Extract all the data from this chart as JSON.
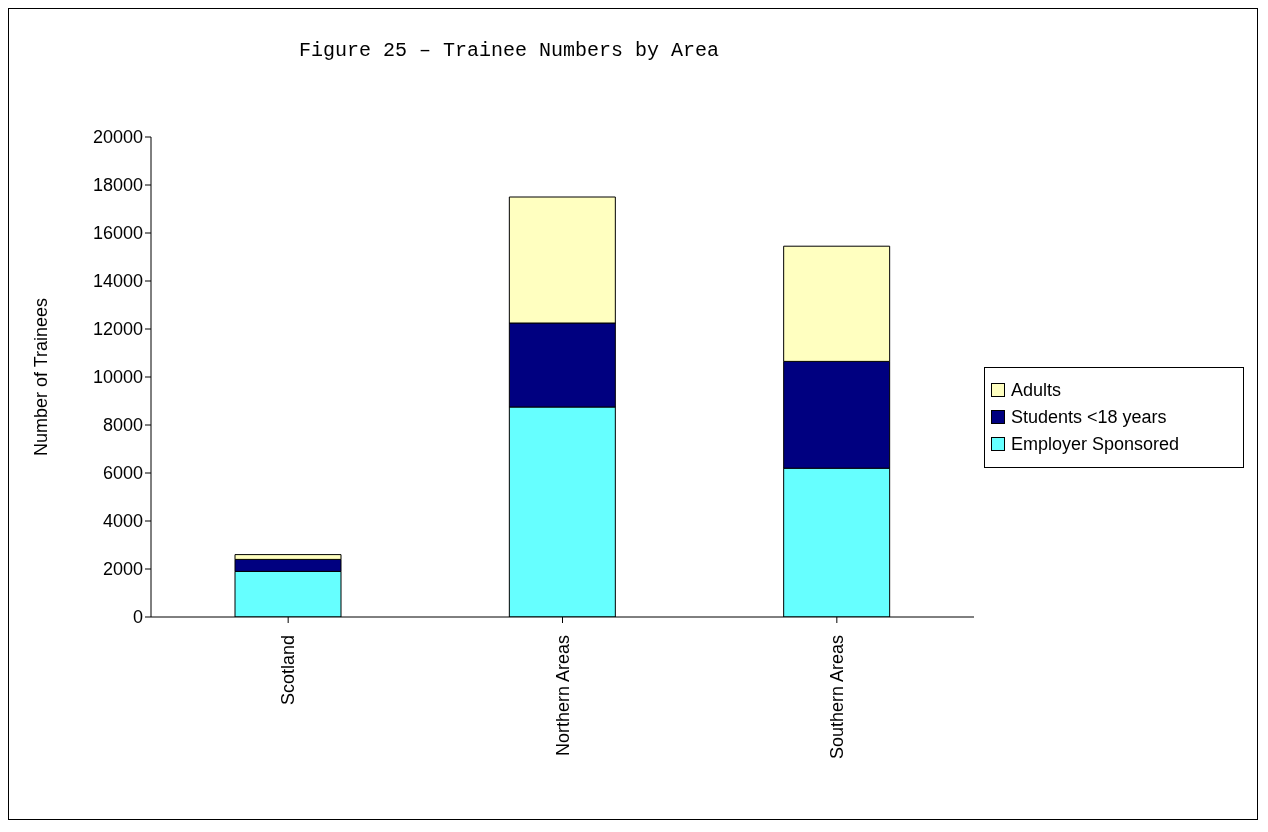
{
  "chart_data": {
    "type": "bar",
    "title": "Figure 25 – Trainee Numbers by Area",
    "ylabel": "Number of Trainees",
    "categories": [
      "Scotland",
      "Northern Areas",
      "Southern Areas"
    ],
    "series": [
      {
        "name": "Employer Sponsored",
        "color": "#66ffff",
        "values": [
          1900,
          8750,
          6200
        ]
      },
      {
        "name": "Students <18 years",
        "color": "#000080",
        "values": [
          500,
          3500,
          4450
        ]
      },
      {
        "name": "Adults",
        "color": "#ffffc0",
        "values": [
          200,
          5250,
          4800
        ]
      }
    ],
    "stacked": true,
    "ylim": [
      0,
      20000
    ],
    "yticks": [
      0,
      2000,
      4000,
      6000,
      8000,
      10000,
      12000,
      14000,
      16000,
      18000,
      20000
    ],
    "legend": "right"
  }
}
